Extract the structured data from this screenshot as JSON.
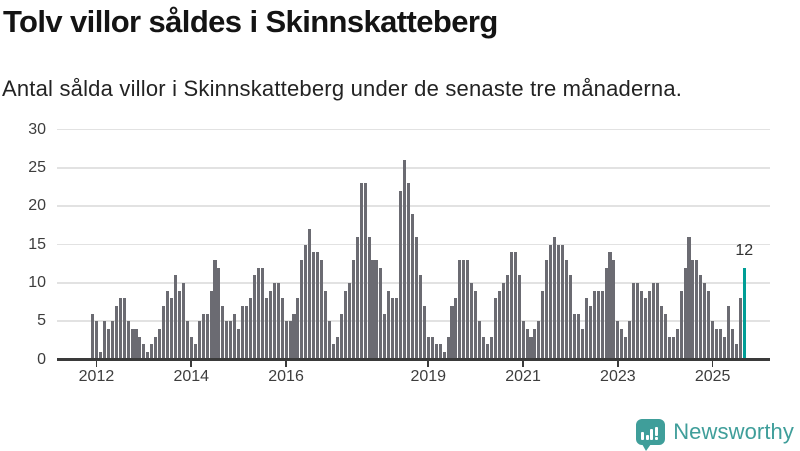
{
  "title": "Tolv villor såldes i Skinnskatteberg",
  "subtitle": "Antal sålda villor i Skinnskatteberg under de senaste tre månaderna.",
  "annotation_label": "12",
  "logo": {
    "text": "Newsworthy"
  },
  "colors": {
    "bar": "#6b6b72",
    "highlight": "#009e96",
    "gridline": "#e2e2e2",
    "axis": "#3a3a3a",
    "logo_teal": "#3f9e9a",
    "text_dark": "#141414"
  },
  "chart_data": {
    "type": "bar",
    "title": "Tolv villor såldes i Skinnskatteberg",
    "subtitle": "Antal sålda villor i Skinnskatteberg under de senaste tre månaderna.",
    "xlabel": "",
    "ylabel": "",
    "ylim": [
      0,
      30
    ],
    "grid": true,
    "frequency": "monthly",
    "y_ticks": [
      0,
      5,
      10,
      15,
      20,
      25,
      30
    ],
    "x_tick_years": [
      "2012",
      "2014",
      "2016",
      "2019",
      "2021",
      "2023",
      "2025"
    ],
    "last_point_label": "12",
    "last_point_value": 12,
    "values": [
      6,
      5,
      1,
      5,
      4,
      5,
      7,
      8,
      8,
      5,
      4,
      4,
      3,
      2,
      1,
      2,
      3,
      4,
      7,
      9,
      8,
      11,
      9,
      10,
      5,
      3,
      2,
      5,
      6,
      6,
      9,
      13,
      12,
      7,
      5,
      5,
      6,
      4,
      7,
      7,
      8,
      11,
      12,
      12,
      8,
      9,
      10,
      10,
      8,
      5,
      5,
      6,
      8,
      13,
      15,
      17,
      14,
      14,
      13,
      9,
      5,
      2,
      3,
      6,
      9,
      10,
      13,
      16,
      23,
      23,
      16,
      13,
      13,
      12,
      6,
      9,
      8,
      8,
      22,
      26,
      23,
      19,
      16,
      11,
      7,
      3,
      3,
      2,
      2,
      1,
      3,
      7,
      8,
      13,
      13,
      13,
      10,
      9,
      5,
      3,
      2,
      3,
      8,
      9,
      10,
      11,
      14,
      14,
      11,
      5,
      4,
      3,
      4,
      5,
      9,
      13,
      15,
      16,
      15,
      15,
      13,
      11,
      6,
      6,
      4,
      8,
      7,
      9,
      9,
      9,
      12,
      14,
      13,
      5,
      4,
      3,
      5,
      10,
      10,
      9,
      8,
      9,
      10,
      10,
      7,
      6,
      3,
      3,
      4,
      9,
      12,
      16,
      13,
      13,
      11,
      10,
      9,
      5,
      4,
      4,
      3,
      7,
      4,
      2,
      8,
      12
    ]
  }
}
